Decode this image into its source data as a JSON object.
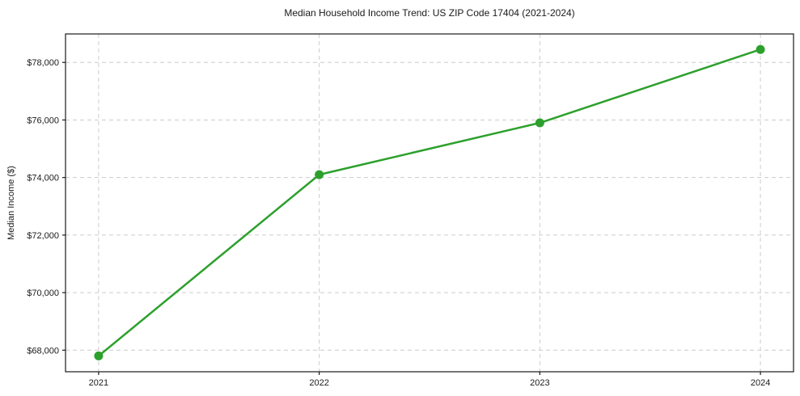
{
  "figure": {
    "background": "#ffffff"
  },
  "chart_data": {
    "type": "line",
    "title": "Median Household Income Trend: US ZIP Code 17404 (2021-2024)",
    "xlabel": "",
    "ylabel": "Median Income ($)",
    "x": [
      2021,
      2022,
      2023,
      2024
    ],
    "series": [
      {
        "values": [
          67800,
          74100,
          75900,
          78450
        ],
        "color": "#2ca02c",
        "marker": "circle"
      }
    ],
    "xtick_labels": [
      "2021",
      "2022",
      "2023",
      "2024"
    ],
    "yticks": [
      68000,
      70000,
      72000,
      74000,
      76000,
      78000
    ],
    "ytick_labels": [
      "$68,000",
      "$70,000",
      "$72,000",
      "$74,000",
      "$76,000",
      "$78,000"
    ],
    "xlim": [
      2020.85,
      2024.15
    ],
    "ylim": [
      67250,
      78990
    ],
    "grid": true,
    "grid_style": "dashed",
    "grid_color": "#cccccc",
    "axis_color": "#1a1a1a",
    "text_color": "#1a1a1a",
    "legend": "none"
  }
}
